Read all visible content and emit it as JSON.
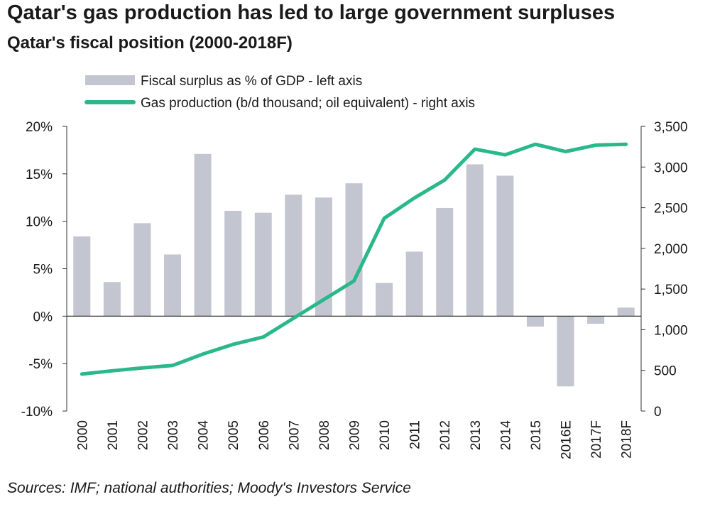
{
  "title": "Qatar's gas production has led to large government surpluses",
  "subtitle": "Qatar's fiscal position (2000-2018F)",
  "source": "Sources: IMF; national authorities; Moody's Investors Service",
  "colors": {
    "bar": "#c3c6d0",
    "line": "#2ab88a",
    "axis": "#333333",
    "zero": "#222222"
  },
  "chart_data": {
    "type": "bar",
    "categories": [
      "2000",
      "2001",
      "2002",
      "2003",
      "2004",
      "2005",
      "2006",
      "2007",
      "2008",
      "2009",
      "2010",
      "2011",
      "2012",
      "2013",
      "2014",
      "2015",
      "2016E",
      "2017F",
      "2018F"
    ],
    "series": [
      {
        "name": "Fiscal surplus as % of GDP - left axis",
        "type": "bar",
        "axis": "left",
        "values": [
          8.4,
          3.6,
          9.8,
          6.5,
          17.1,
          11.1,
          10.9,
          12.8,
          12.5,
          14.0,
          3.5,
          6.8,
          11.4,
          16.0,
          14.8,
          -1.1,
          -7.4,
          -0.8,
          0.9
        ]
      },
      {
        "name": "Gas production (b/d thousand; oil equivalent) - right axis",
        "type": "line",
        "axis": "right",
        "values": [
          455,
          495,
          530,
          560,
          700,
          820,
          910,
          1140,
          1370,
          1600,
          2370,
          2620,
          2840,
          3220,
          3150,
          3280,
          3190,
          3270,
          3280
        ]
      }
    ],
    "y_left": {
      "lim": [
        -10,
        20
      ],
      "ticks": [
        -10,
        -5,
        0,
        5,
        10,
        15,
        20
      ],
      "tick_labels": [
        "-10%",
        "-5%",
        "0%",
        "5%",
        "10%",
        "15%",
        "20%"
      ]
    },
    "y_right": {
      "lim": [
        0,
        3500
      ],
      "ticks": [
        0,
        500,
        1000,
        1500,
        2000,
        2500,
        3000,
        3500
      ],
      "tick_labels": [
        "0",
        "500",
        "1,000",
        "1,500",
        "2,000",
        "2,500",
        "3,000",
        "3,500"
      ]
    },
    "grid": false,
    "legend_position": "top-left"
  }
}
